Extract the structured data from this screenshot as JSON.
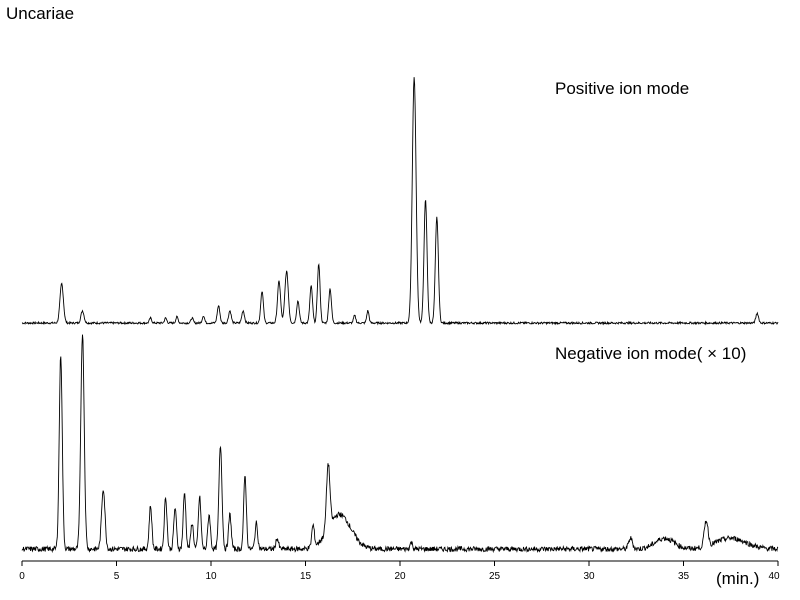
{
  "title": "Uncariae",
  "chart_data": {
    "type": "line",
    "xlabel": "(min.)",
    "xlim": [
      0,
      40
    ],
    "xticks": [
      0,
      5,
      10,
      15,
      20,
      25,
      30,
      35,
      40
    ],
    "grid": false,
    "series": [
      {
        "name": "Positive ion mode",
        "baseline_noise": 0.004,
        "peaks": [
          {
            "t": 2.1,
            "h": 0.16,
            "w": 0.09
          },
          {
            "t": 3.2,
            "h": 0.05,
            "w": 0.08
          },
          {
            "t": 6.8,
            "h": 0.02,
            "w": 0.06
          },
          {
            "t": 7.6,
            "h": 0.02,
            "w": 0.06
          },
          {
            "t": 8.2,
            "h": 0.025,
            "w": 0.06
          },
          {
            "t": 9.0,
            "h": 0.02,
            "w": 0.06
          },
          {
            "t": 9.6,
            "h": 0.03,
            "w": 0.06
          },
          {
            "t": 10.4,
            "h": 0.07,
            "w": 0.07
          },
          {
            "t": 11.0,
            "h": 0.05,
            "w": 0.07
          },
          {
            "t": 11.7,
            "h": 0.05,
            "w": 0.07
          },
          {
            "t": 12.7,
            "h": 0.13,
            "w": 0.07
          },
          {
            "t": 13.6,
            "h": 0.17,
            "w": 0.08
          },
          {
            "t": 14.0,
            "h": 0.21,
            "w": 0.09
          },
          {
            "t": 14.6,
            "h": 0.09,
            "w": 0.07
          },
          {
            "t": 15.3,
            "h": 0.15,
            "w": 0.07
          },
          {
            "t": 15.7,
            "h": 0.24,
            "w": 0.07
          },
          {
            "t": 16.3,
            "h": 0.14,
            "w": 0.07
          },
          {
            "t": 17.6,
            "h": 0.03,
            "w": 0.06
          },
          {
            "t": 18.3,
            "h": 0.05,
            "w": 0.06
          },
          {
            "t": 20.75,
            "h": 1.0,
            "w": 0.1
          },
          {
            "t": 21.35,
            "h": 0.5,
            "w": 0.08
          },
          {
            "t": 21.95,
            "h": 0.43,
            "w": 0.08
          },
          {
            "t": 38.9,
            "h": 0.04,
            "w": 0.07
          }
        ]
      },
      {
        "name": "Negative ion mode( × 10)",
        "baseline_noise": 0.012,
        "peaks": [
          {
            "t": 2.05,
            "h": 0.9,
            "w": 0.08
          },
          {
            "t": 3.2,
            "h": 1.0,
            "w": 0.09
          },
          {
            "t": 4.3,
            "h": 0.28,
            "w": 0.09
          },
          {
            "t": 6.8,
            "h": 0.2,
            "w": 0.07
          },
          {
            "t": 7.6,
            "h": 0.24,
            "w": 0.07
          },
          {
            "t": 8.1,
            "h": 0.19,
            "w": 0.07
          },
          {
            "t": 8.6,
            "h": 0.26,
            "w": 0.07
          },
          {
            "t": 9.0,
            "h": 0.12,
            "w": 0.07
          },
          {
            "t": 9.4,
            "h": 0.24,
            "w": 0.07
          },
          {
            "t": 9.9,
            "h": 0.16,
            "w": 0.07
          },
          {
            "t": 10.5,
            "h": 0.48,
            "w": 0.08
          },
          {
            "t": 11.0,
            "h": 0.16,
            "w": 0.07
          },
          {
            "t": 11.8,
            "h": 0.34,
            "w": 0.07
          },
          {
            "t": 12.4,
            "h": 0.12,
            "w": 0.07
          },
          {
            "t": 13.5,
            "h": 0.05,
            "w": 0.07
          },
          {
            "t": 15.4,
            "h": 0.1,
            "w": 0.07
          },
          {
            "t": 16.2,
            "h": 0.3,
            "w": 0.09
          },
          {
            "t": 16.8,
            "h": 0.16,
            "w": 0.6
          },
          {
            "t": 20.6,
            "h": 0.03,
            "w": 0.07
          },
          {
            "t": 32.2,
            "h": 0.05,
            "w": 0.1
          },
          {
            "t": 34.0,
            "h": 0.05,
            "w": 0.5
          },
          {
            "t": 36.2,
            "h": 0.12,
            "w": 0.1
          },
          {
            "t": 37.5,
            "h": 0.05,
            "w": 0.8
          }
        ]
      }
    ]
  }
}
